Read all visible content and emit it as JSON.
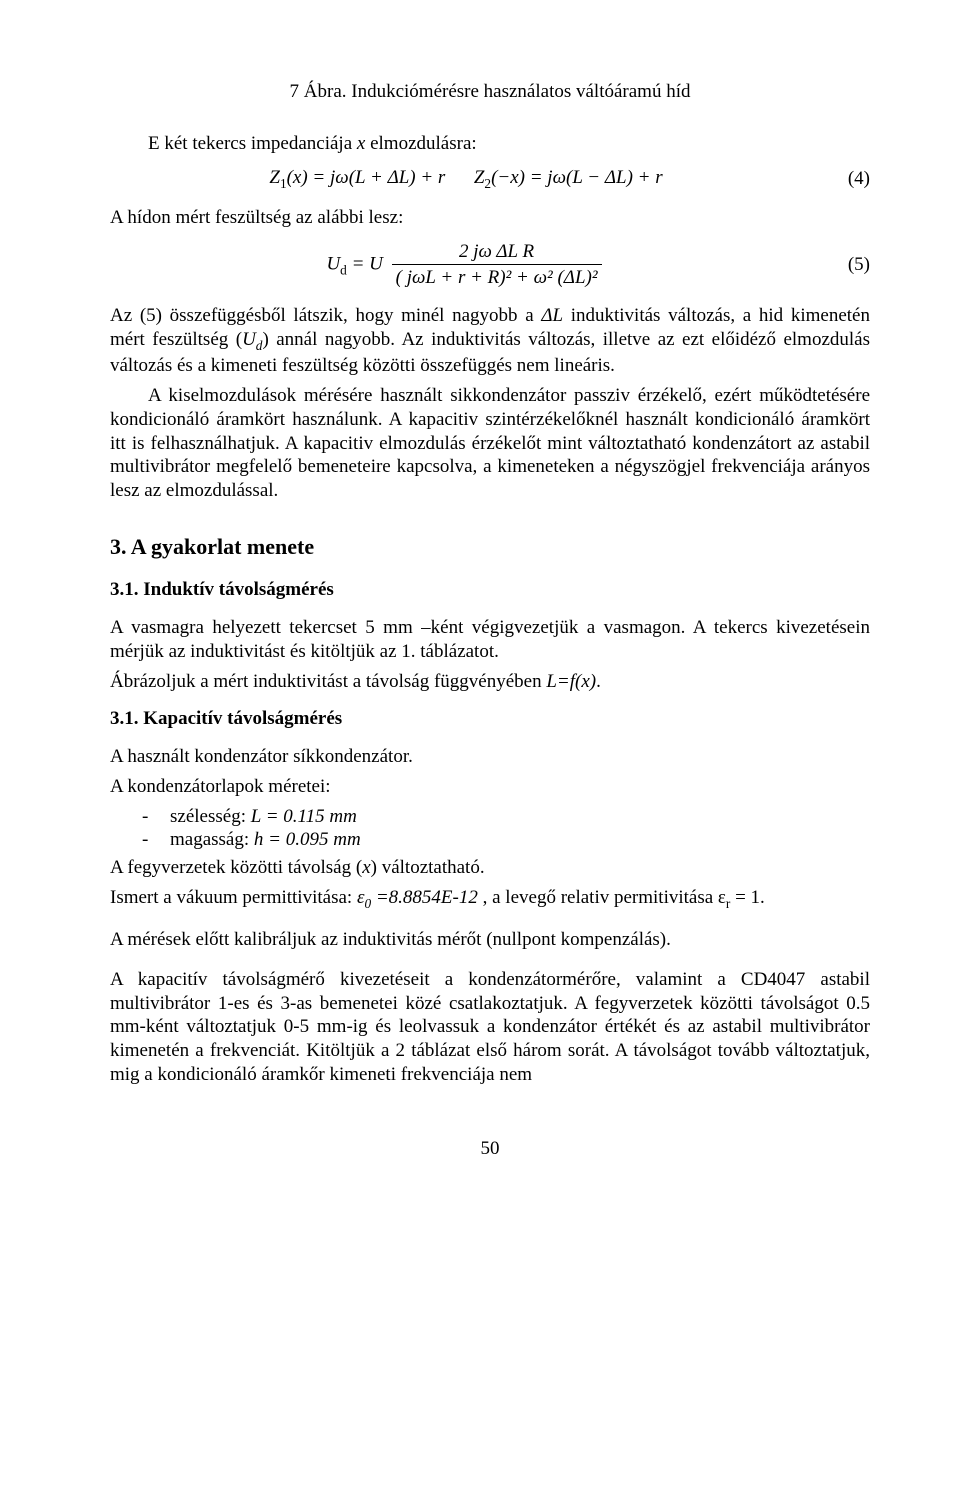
{
  "fig_caption": "7 Ábra. Indukciómérésre használatos váltóáramú híd",
  "intro_line": "E két tekercs impedanciája x elmozdulásra:",
  "eq4": {
    "lhs1": "Z",
    "sub1": "1",
    "arg1": "(x) = jω(L + ΔL) + r",
    "lhs2": "Z",
    "sub2": "2",
    "arg2": "(−x) = jω(L − ΔL) + r",
    "num": "(4)"
  },
  "bridge_line": "A hídon mért feszültség az alábbi lesz:",
  "eq5": {
    "lhs": "U",
    "sub": "d",
    "eqU": " = U",
    "numerator": "2 jω ΔL R",
    "den": "( jωL + r + R)² + ω² (ΔL)²",
    "num": "(5)"
  },
  "para1": "Az (5) összefüggésből látszik, hogy minél nagyobb a ΔL induktivitás változás, a hid kimenetén mért feszültség (Uᵈ) annál nagyobb. Az induktivitás változás, illetve az ezt előidéző elmozdulás változás és a kimeneti feszültség közötti összefüggés nem lineáris.",
  "para2": "A kiselmozdulások mérésére használt sikkondenzátor passziv érzékelő, ezért működtetésére kondicionáló áramkört használunk. A kapacitiv szintérzékelőknél használt kondicionáló áramkört itt is felhasználhatjuk. A kapacitiv elmozdulás érzékelőt mint változtatható kondenzátort az astabil multivibrátor megfelelő bemeneteire kapcsolva, a kimeneteken a négyszögjel frekvenciája arányos lesz az elmozdulással.",
  "h2": "3. A gyakorlat menete",
  "h3a": "3.1. Induktív távolságmérés",
  "p3a_1": "A vasmagra helyezett tekercset 5 mm –ként végigvezetjük a vasmagon. A tekercs kivezetésein mérjük az induktivitást és kitöltjük az 1. táblázatot.",
  "p3a_2": "Ábrázoljuk a mért induktivitást a távolság függvényében L=f(x).",
  "h3b": "3.1. Kapacitív távolságmérés",
  "p3b_1": "A használt kondenzátor síkkondenzátor.",
  "p3b_2": "A kondenzátorlapok méretei:",
  "dim_w": "szélesség: L = 0.115 mm",
  "dim_h": "magasság: h = 0.095 mm",
  "p3b_3": "A fegyverzetek közötti távolság (x) változtatható.",
  "p3b_4": "Ismert a vákuum permittivitása: ε₀ =8.8854E-12 , a levegő relativ permitivitása εᵣ = 1.",
  "p_cal": "A mérések előtt kalibráljuk az induktivitás mérőt (nullpont kompenzálás).",
  "p_last": "A kapacitív távolságmérő kivezetéseit a kondenzátormérőre, valamint a CD4047 astabil multivibrátor 1-es és 3-as bemenetei közé csatlakoztatjuk. A fegyverzetek közötti távolságot 0.5 mm-ként változtatjuk 0-5 mm-ig és leolvassuk a kondenzátor értékét és az astabil multivibrátor kimenetén a frekvenciát. Kitöltjük a 2 táblázat első három sorát. A távolságot tovább változtatjuk, mig a kondicionáló áramkőr kimeneti frekvenciája nem",
  "page_number": "50"
}
